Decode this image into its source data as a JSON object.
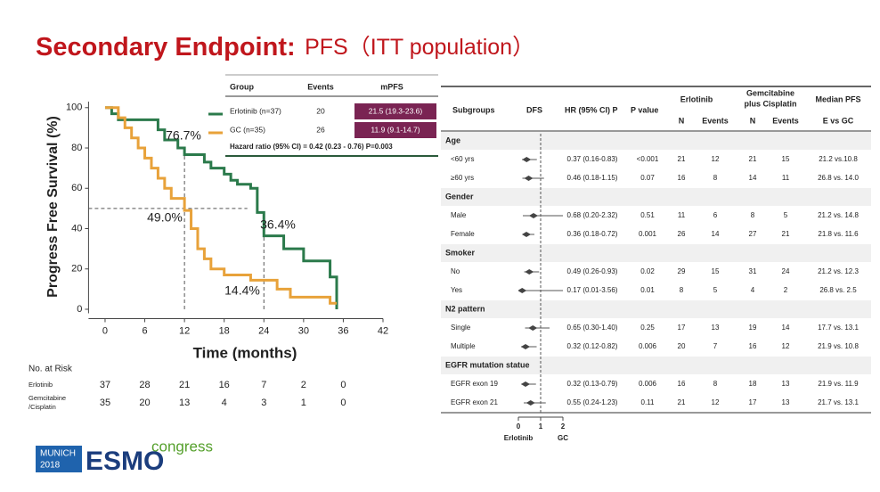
{
  "title": {
    "bold": "Secondary Endpoint:",
    "rest": "PFS（ITT population）"
  },
  "logo": {
    "city": "MUNICH",
    "year": "2018",
    "brand": "ESMO",
    "suffix": "congress"
  },
  "chart_data": [
    {
      "type": "line",
      "step": true,
      "xlabel": "Time (months)",
      "ylabel": "Progress Free Survival (%)",
      "xlim": [
        -2.5,
        42
      ],
      "ylim": [
        -2,
        103
      ],
      "xticks": [
        0,
        6,
        12,
        18,
        24,
        30,
        36,
        42
      ],
      "yticks": [
        0,
        20,
        40,
        60,
        80,
        100
      ],
      "series": [
        {
          "name": "Erlotinib (n=37)",
          "color": "#2b7a4b",
          "events": 20,
          "mpfs": "21.5 (19.3-23.6)",
          "x": [
            0,
            1,
            1,
            2,
            2,
            8,
            8,
            9,
            9,
            11,
            11,
            12,
            12,
            15,
            15,
            16,
            16,
            18,
            18,
            19,
            19,
            20,
            20,
            22,
            22,
            23,
            23,
            24,
            24,
            27,
            27,
            30,
            30,
            34,
            34,
            35,
            35
          ],
          "values": [
            100,
            100,
            97,
            97,
            94,
            94,
            89,
            89,
            84,
            84,
            80,
            80,
            76.7,
            76.7,
            73,
            73,
            70,
            70,
            67,
            67,
            64,
            64,
            62,
            62,
            60,
            60,
            48,
            48,
            36.4,
            36.4,
            30,
            30,
            24,
            24,
            16,
            16,
            0
          ]
        },
        {
          "name": "GC (n=35)",
          "color": "#e8a23a",
          "events": 26,
          "mpfs": "11.9 (9.1-14.7)",
          "x": [
            0,
            2,
            2,
            3,
            3,
            4,
            4,
            5,
            5,
            6,
            6,
            7,
            7,
            8,
            8,
            9,
            9,
            10,
            10,
            12,
            12,
            13,
            13,
            14,
            14,
            15,
            15,
            16,
            16,
            18,
            18,
            22,
            22,
            26,
            26,
            28,
            28,
            34,
            34,
            35
          ],
          "values": [
            100,
            100,
            95,
            95,
            90,
            90,
            85,
            85,
            80,
            80,
            75,
            75,
            70,
            70,
            65,
            65,
            60,
            60,
            55,
            55,
            49,
            49,
            40,
            40,
            30,
            30,
            25,
            25,
            20,
            20,
            17,
            17,
            14.4,
            14.4,
            10,
            10,
            6,
            6,
            3,
            3
          ]
        }
      ],
      "reference_lines": [
        {
          "y": 50,
          "x": [
            -2.5,
            21.5
          ]
        },
        {
          "x": 12,
          "y": [
            0,
            76.7
          ]
        },
        {
          "x": 24,
          "y": [
            0,
            36.4
          ]
        }
      ],
      "annotations": [
        "76.7%",
        "49.0%",
        "36.4%",
        "14.4%"
      ],
      "legend": {
        "headers": [
          "Group",
          "Events",
          "mPFS"
        ],
        "hazard_ratio": "Hazard ratio (95% CI) = 0.42 (0.23 - 0.76) P=0.003"
      },
      "risk_table": {
        "title": "No. at Risk",
        "rows": [
          {
            "label": [
              "Erlotinib"
            ],
            "values": [
              37,
              28,
              21,
              16,
              7,
              2,
              0
            ]
          },
          {
            "label": [
              "Gemcitabine",
              "/Cisplatin"
            ],
            "values": [
              35,
              20,
              13,
              4,
              3,
              1,
              0
            ]
          }
        ]
      }
    },
    {
      "type": "forest",
      "xlim": [
        0,
        2
      ],
      "xticks": [
        0,
        1,
        2
      ],
      "ref_line": 1,
      "favours": [
        "Erlotinib",
        "GC"
      ],
      "columns": {
        "subgroups": "Subgroups",
        "dfs": "DFS",
        "hr": "HR (95% CI) P",
        "p": "P value",
        "erlotinib": "Erlotinib",
        "gc": [
          "Gemcitabine",
          "plus Cisplatin"
        ],
        "median": "Median PFS",
        "n": "N",
        "events": "Events",
        "median_sub": "E vs GC"
      },
      "groups": [
        {
          "name": "Age",
          "rows": [
            {
              "label": "<60 yrs",
              "hr": 0.37,
              "ci": [
                0.16,
                0.83
              ],
              "hr_label": "0.37 (0.16-0.83)",
              "p": "<0.001",
              "erlotinib": [
                21,
                12
              ],
              "gc": [
                21,
                15
              ],
              "median": "21.2 vs.10.8"
            },
            {
              "label": "≥60 yrs",
              "hr": 0.46,
              "ci": [
                0.18,
                1.15
              ],
              "hr_label": "0.46 (0.18-1.15)",
              "p": "0.07",
              "erlotinib": [
                16,
                8
              ],
              "gc": [
                14,
                11
              ],
              "median": "26.8 vs. 14.0"
            }
          ]
        },
        {
          "name": "Gender",
          "rows": [
            {
              "label": "Male",
              "hr": 0.68,
              "ci": [
                0.2,
                2.32
              ],
              "hr_label": "0.68 (0.20-2.32)",
              "p": "0.51",
              "erlotinib": [
                11,
                6
              ],
              "gc": [
                8,
                5
              ],
              "median": "21.2 vs. 14.8"
            },
            {
              "label": "Female",
              "hr": 0.36,
              "ci": [
                0.18,
                0.72
              ],
              "hr_label": "0.36 (0.18-0.72)",
              "p": "0.001",
              "erlotinib": [
                26,
                14
              ],
              "gc": [
                27,
                21
              ],
              "median": "21.8 vs. 11.6"
            }
          ]
        },
        {
          "name": "Smoker",
          "rows": [
            {
              "label": "No",
              "hr": 0.49,
              "ci": [
                0.26,
                0.93
              ],
              "hr_label": "0.49 (0.26-0.93)",
              "p": "0.02",
              "erlotinib": [
                29,
                15
              ],
              "gc": [
                31,
                24
              ],
              "median": "21.2 vs. 12.3"
            },
            {
              "label": "Yes",
              "hr": 0.17,
              "ci": [
                0.01,
                3.56
              ],
              "hr_label": "0.17 (0.01-3.56)",
              "p": "0.01",
              "erlotinib": [
                8,
                5
              ],
              "gc": [
                4,
                2
              ],
              "median": "26.8 vs. 2.5"
            }
          ]
        },
        {
          "name": "N2 pattern",
          "rows": [
            {
              "label": "Single",
              "hr": 0.65,
              "ci": [
                0.3,
                1.4
              ],
              "hr_label": "0.65 (0.30-1.40)",
              "p": "0.25",
              "erlotinib": [
                17,
                13
              ],
              "gc": [
                19,
                14
              ],
              "median": "17.7 vs. 13.1"
            },
            {
              "label": "Multiple",
              "hr": 0.32,
              "ci": [
                0.12,
                0.82
              ],
              "hr_label": "0.32 (0.12-0.82)",
              "p": "0.006",
              "erlotinib": [
                20,
                7
              ],
              "gc": [
                16,
                12
              ],
              "median": "21.9 vs. 10.8"
            }
          ]
        },
        {
          "name": "EGFR mutation statue",
          "rows": [
            {
              "label": "EGFR exon 19",
              "hr": 0.32,
              "ci": [
                0.13,
                0.79
              ],
              "hr_label": "0.32 (0.13-0.79)",
              "p": "0.006",
              "erlotinib": [
                16,
                8
              ],
              "gc": [
                18,
                13
              ],
              "median": "21.9 vs. 11.9"
            },
            {
              "label": "EGFR exon 21",
              "hr": 0.55,
              "ci": [
                0.24,
                1.23
              ],
              "hr_label": "0.55 (0.24-1.23)",
              "p": "0.11",
              "erlotinib": [
                21,
                12
              ],
              "gc": [
                17,
                13
              ],
              "median": "21.7 vs. 13.1"
            }
          ]
        }
      ]
    }
  ]
}
